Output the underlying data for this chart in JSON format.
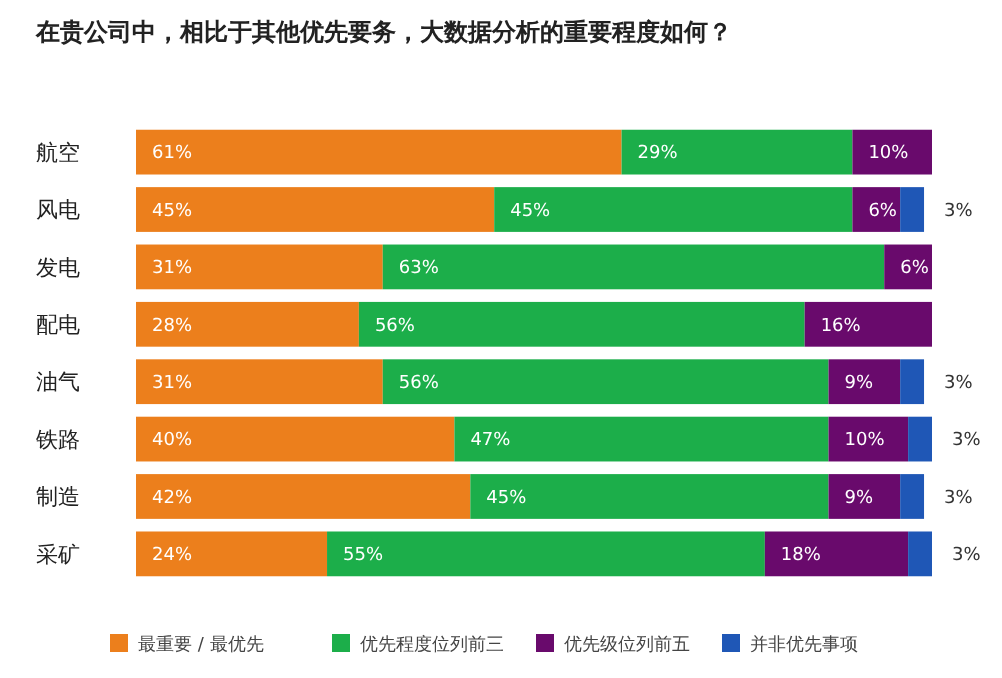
{
  "chart_data": {
    "type": "bar",
    "orientation": "horizontal",
    "stacked": true,
    "title": "在贵公司中，相比于其他优先要务，大数据分析的重要程度如何？",
    "categories": [
      "航空",
      "风电",
      "发电",
      "配电",
      "油气",
      "铁路",
      "制造",
      "采矿"
    ],
    "xlim": [
      0,
      100
    ],
    "legend": "bottom",
    "series": [
      {
        "name": "最重要 / 最优先",
        "color": "#ec7f1c",
        "values": [
          61,
          45,
          31,
          28,
          31,
          40,
          42,
          24
        ],
        "value_labels": [
          "61%",
          "45%",
          "31%",
          "28%",
          "31%",
          "40%",
          "42%",
          "24%"
        ]
      },
      {
        "name": "优先程度位列前三",
        "color": "#1cae4a",
        "values": [
          29,
          45,
          63,
          56,
          56,
          47,
          45,
          55
        ],
        "value_labels": [
          "29%",
          "45%",
          "63%",
          "56%",
          "56%",
          "47%",
          "45%",
          "55%"
        ]
      },
      {
        "name": "优先级位列前五",
        "color": "#690a6c",
        "values": [
          10,
          6,
          6,
          16,
          9,
          10,
          9,
          18
        ],
        "value_labels": [
          "10%",
          "6%",
          "6%",
          "16%",
          "9%",
          "10%",
          "9%",
          "18%"
        ]
      },
      {
        "name": "并非优先事项",
        "color": "#1f57b6",
        "values": [
          null,
          3,
          null,
          null,
          3,
          3,
          3,
          3
        ],
        "value_labels": [
          null,
          "3%",
          null,
          null,
          "3%",
          "3%",
          "3%",
          "3%"
        ]
      }
    ]
  }
}
